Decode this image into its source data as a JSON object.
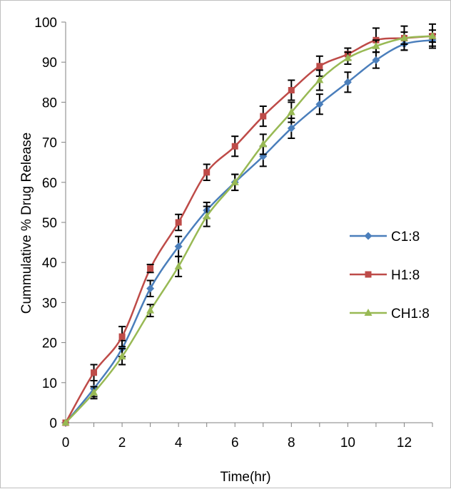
{
  "chart_data": {
    "type": "line",
    "title": "",
    "xlabel": "Time(hr)",
    "ylabel": "Cummulative % Drug Release",
    "xlim": [
      0,
      13
    ],
    "ylim": [
      0,
      100
    ],
    "x_ticks": [
      "0",
      "2",
      "4",
      "6",
      "8",
      "10",
      "12"
    ],
    "y_ticks": [
      "0",
      "10",
      "20",
      "30",
      "40",
      "50",
      "60",
      "70",
      "80",
      "90",
      "100"
    ],
    "grid": false,
    "legend_position": "right",
    "x": [
      0,
      1,
      2,
      3,
      4,
      5,
      6,
      7,
      8,
      9,
      10,
      11,
      12,
      13
    ],
    "series": [
      {
        "name": "C1:8",
        "color": "#4a7ebb",
        "marker": "diamond",
        "values": [
          0,
          8.5,
          18.5,
          33.5,
          44.0,
          53.0,
          60.0,
          66.5,
          73.5,
          79.5,
          85.0,
          90.5,
          94.5,
          95.5
        ],
        "errors": [
          0,
          2.0,
          2.0,
          2.0,
          2.5,
          2.0,
          2.0,
          2.5,
          2.5,
          2.5,
          2.5,
          2.0,
          1.5,
          1.5
        ]
      },
      {
        "name": "H1:8",
        "color": "#be4b48",
        "marker": "square",
        "values": [
          0,
          12.5,
          21.5,
          38.5,
          50.0,
          62.5,
          69.0,
          76.5,
          83.0,
          89.0,
          92.0,
          95.5,
          96.0,
          96.5
        ],
        "errors": [
          0,
          2.0,
          2.5,
          1.0,
          2.0,
          2.0,
          2.5,
          2.5,
          2.5,
          2.5,
          1.5,
          3.0,
          3.0,
          3.0
        ]
      },
      {
        "name": "CH1:8",
        "color": "#98b954",
        "marker": "triangle",
        "values": [
          0,
          7.5,
          16.5,
          28.0,
          39.0,
          51.5,
          60.0,
          69.5,
          77.5,
          85.5,
          91.0,
          94.0,
          96.0,
          96.5
        ],
        "errors": [
          0,
          1.5,
          2.0,
          1.5,
          2.5,
          2.5,
          2.0,
          2.5,
          2.5,
          2.5,
          1.5,
          1.5,
          1.5,
          1.5
        ]
      }
    ]
  }
}
